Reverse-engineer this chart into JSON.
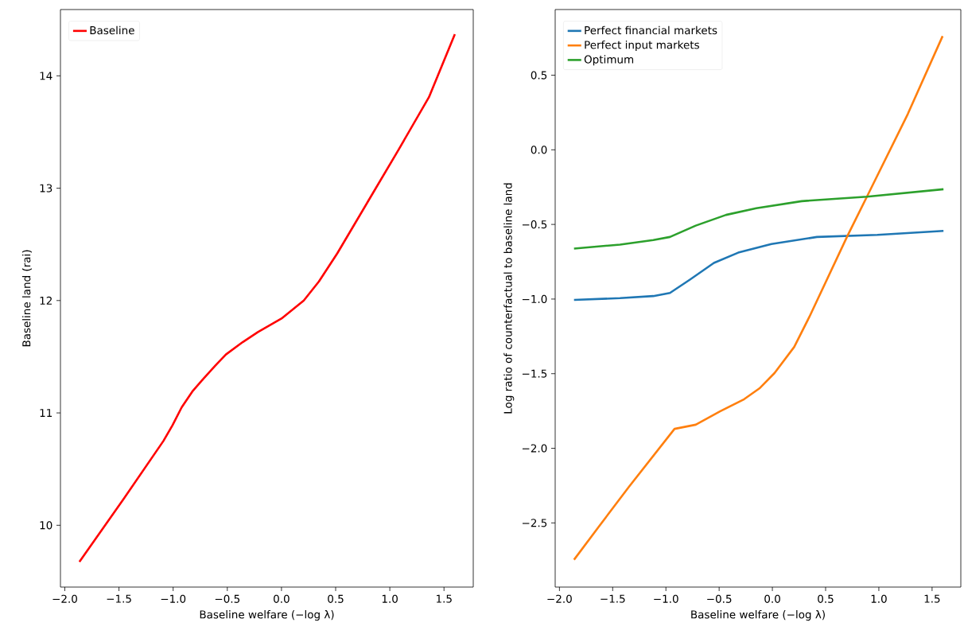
{
  "chart_data": [
    {
      "type": "line",
      "xlabel": "Baseline welfare (−log λ)",
      "ylabel": "Baseline land (rai)",
      "xlim": [
        -2.04,
        1.77
      ],
      "ylim": [
        9.45,
        14.59
      ],
      "xticks": [
        {
          "value": -2.0,
          "label": "−2.0"
        },
        {
          "value": -1.5,
          "label": "−1.5"
        },
        {
          "value": -1.0,
          "label": "−1.0"
        },
        {
          "value": -0.5,
          "label": "−0.5"
        },
        {
          "value": 0.0,
          "label": "0.0"
        },
        {
          "value": 0.5,
          "label": "0.5"
        },
        {
          "value": 1.0,
          "label": "1.0"
        },
        {
          "value": 1.5,
          "label": "1.5"
        }
      ],
      "yticks": [
        10,
        11,
        12,
        13,
        14
      ],
      "legend": "top left",
      "series": [
        {
          "name": "Baseline",
          "color": "#ff0000",
          "x": [
            -1.865,
            -1.456,
            -1.09,
            -1.006,
            -0.921,
            -0.823,
            -0.724,
            -0.611,
            -0.513,
            -0.358,
            -0.217,
            0.0,
            0.206,
            0.346,
            0.515,
            0.797,
            1.079,
            1.361,
            1.6
          ],
          "values": [
            9.675,
            10.235,
            10.75,
            10.89,
            11.05,
            11.19,
            11.3,
            11.42,
            11.52,
            11.63,
            11.72,
            11.84,
            12.0,
            12.17,
            12.42,
            12.88,
            13.34,
            13.81,
            14.37
          ]
        }
      ]
    },
    {
      "type": "line",
      "xlabel": "Baseline welfare (−log λ)",
      "ylabel": "Log ratio of counterfactual to baseline land",
      "xlim": [
        -2.04,
        1.77
      ],
      "ylim": [
        -2.93,
        0.94
      ],
      "xticks": [
        {
          "value": -2.0,
          "label": "−2.0"
        },
        {
          "value": -1.5,
          "label": "−1.5"
        },
        {
          "value": -1.0,
          "label": "−1.0"
        },
        {
          "value": -0.5,
          "label": "−0.5"
        },
        {
          "value": 0.0,
          "label": "0.0"
        },
        {
          "value": 0.5,
          "label": "0.5"
        },
        {
          "value": 1.0,
          "label": "1.0"
        },
        {
          "value": 1.5,
          "label": "1.5"
        }
      ],
      "yticks": [
        {
          "value": -2.5,
          "label": "−2.5"
        },
        {
          "value": -2.0,
          "label": "−2.0"
        },
        {
          "value": -1.5,
          "label": "−1.5"
        },
        {
          "value": -1.0,
          "label": "−1.0"
        },
        {
          "value": -0.5,
          "label": "−0.5"
        },
        {
          "value": 0.0,
          "label": "0.0"
        },
        {
          "value": 0.5,
          "label": "0.5"
        }
      ],
      "legend": "top left",
      "series": [
        {
          "name": "Perfect financial markets",
          "color": "#1f77b4",
          "x": [
            -1.863,
            -1.431,
            -1.118,
            -0.962,
            -0.777,
            -0.549,
            -0.321,
            -0.009,
            0.418,
            0.987,
            1.607
          ],
          "values": [
            -1.006,
            -0.994,
            -0.98,
            -0.959,
            -0.871,
            -0.758,
            -0.689,
            -0.631,
            -0.584,
            -0.57,
            -0.543
          ]
        },
        {
          "name": "Perfect input markets",
          "color": "#ff7f0e",
          "x": [
            -1.863,
            -1.63,
            -1.346,
            -0.919,
            -0.72,
            -0.492,
            -0.265,
            -0.122,
            0.02,
            0.205,
            0.347,
            0.703,
            0.888,
            1.272,
            1.599
          ],
          "values": [
            -2.747,
            -2.525,
            -2.257,
            -1.87,
            -1.842,
            -1.753,
            -1.671,
            -1.599,
            -1.496,
            -1.321,
            -1.12,
            -0.58,
            -0.314,
            0.24,
            0.762
          ]
        },
        {
          "name": "Optimum",
          "color": "#2ca02c",
          "x": [
            -1.863,
            -1.431,
            -1.118,
            -0.962,
            -0.72,
            -0.435,
            -0.151,
            0.276,
            0.888,
            1.607
          ],
          "values": [
            -0.662,
            -0.635,
            -0.605,
            -0.584,
            -0.508,
            -0.436,
            -0.391,
            -0.344,
            -0.314,
            -0.264
          ]
        }
      ]
    }
  ]
}
